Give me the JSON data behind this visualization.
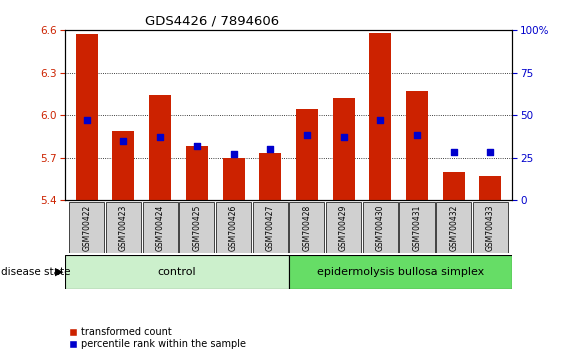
{
  "title": "GDS4426 / 7894606",
  "categories": [
    "GSM700422",
    "GSM700423",
    "GSM700424",
    "GSM700425",
    "GSM700426",
    "GSM700427",
    "GSM700428",
    "GSM700429",
    "GSM700430",
    "GSM700431",
    "GSM700432",
    "GSM700433"
  ],
  "bar_values": [
    6.57,
    5.89,
    6.14,
    5.78,
    5.7,
    5.73,
    6.04,
    6.12,
    6.58,
    6.17,
    5.6,
    5.57
  ],
  "bar_base": 5.4,
  "bar_color": "#cc2200",
  "blue_values": [
    47,
    35,
    37,
    32,
    27,
    30,
    38,
    37,
    47,
    38,
    28,
    28
  ],
  "blue_color": "#0000cc",
  "ylim_left": [
    5.4,
    6.6
  ],
  "ylim_right": [
    0,
    100
  ],
  "yticks_left": [
    5.4,
    5.7,
    6.0,
    6.3,
    6.6
  ],
  "yticks_right": [
    0,
    25,
    50,
    75,
    100
  ],
  "ytick_right_labels": [
    "0",
    "25",
    "50",
    "75",
    "100%"
  ],
  "grid_values": [
    5.7,
    6.0,
    6.3
  ],
  "n_control": 6,
  "disease_label": "epidermolysis bullosa simplex",
  "control_label": "control",
  "disease_state_label": "disease state",
  "legend_red": "transformed count",
  "legend_blue": "percentile rank within the sample",
  "bar_color_hex": "#cc2200",
  "blue_color_hex": "#0000cc",
  "xticklabel_bg": "#d0d0d0",
  "control_bg": "#ccf0cc",
  "disease_bg": "#66dd66",
  "bar_width": 0.6
}
